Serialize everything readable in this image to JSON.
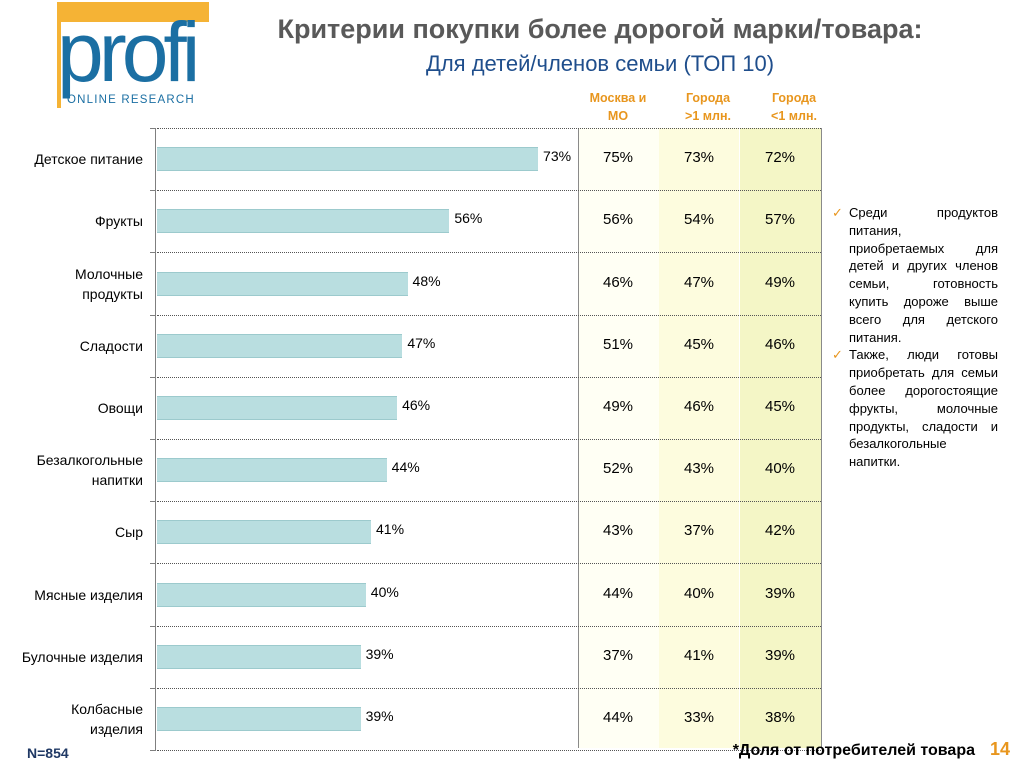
{
  "logo": {
    "word": "profi",
    "subtitle": "ONLINE RESEARCH"
  },
  "title": "Критерии покупки более дорогой марки/товара:",
  "subtitle": "Для детей/членов семьи (ТОП 10)",
  "columns": [
    {
      "line1": "Москва и",
      "line2": "МО"
    },
    {
      "line1": "Города",
      "line2": ">1 млн."
    },
    {
      "line1": "Города",
      "line2": "<1 млн."
    }
  ],
  "colors": {
    "bar": "#b9dee0",
    "accent": "#e8961e",
    "title": "#595959",
    "subtitle": "#1f4e8c",
    "logo": "#1b6fa3"
  },
  "chart_data": {
    "type": "bar",
    "orientation": "horizontal",
    "categories": [
      [
        "Детское питание"
      ],
      [
        "Фрукты"
      ],
      [
        "Молочные",
        "продукты"
      ],
      [
        "Сладости"
      ],
      [
        "Овощи"
      ],
      [
        "Безалкогольные",
        "напитки"
      ],
      [
        "Сыр"
      ],
      [
        "Мясные изделия"
      ],
      [
        "Булочные изделия"
      ],
      [
        "Колбасные",
        "изделия"
      ]
    ],
    "values": [
      73,
      56,
      48,
      47,
      46,
      44,
      41,
      40,
      39,
      39
    ],
    "value_labels": [
      "73%",
      "56%",
      "48%",
      "47%",
      "46%",
      "44%",
      "41%",
      "40%",
      "39%",
      "39%"
    ],
    "xlim": [
      0,
      100
    ],
    "unit": "%",
    "table": [
      [
        "75%",
        "73%",
        "72%"
      ],
      [
        "56%",
        "54%",
        "57%"
      ],
      [
        "46%",
        "47%",
        "49%"
      ],
      [
        "51%",
        "45%",
        "46%"
      ],
      [
        "49%",
        "46%",
        "45%"
      ],
      [
        "52%",
        "43%",
        "40%"
      ],
      [
        "43%",
        "37%",
        "42%"
      ],
      [
        "44%",
        "40%",
        "39%"
      ],
      [
        "37%",
        "41%",
        "39%"
      ],
      [
        "44%",
        "33%",
        "38%"
      ]
    ]
  },
  "notes": [
    "Среди продуктов питания, приобретаемых для детей и других членов семьи, готовность купить дороже выше всего для детского питания.",
    "Также, люди готовы приобретать для семьи более дорогостоящие фрукты, молочные продукты, сладости и безалкогольные напитки."
  ],
  "check_icon": "✓",
  "footer": {
    "n": "N=854",
    "footnote": "*Доля  от потребителей товара",
    "page": "14"
  }
}
